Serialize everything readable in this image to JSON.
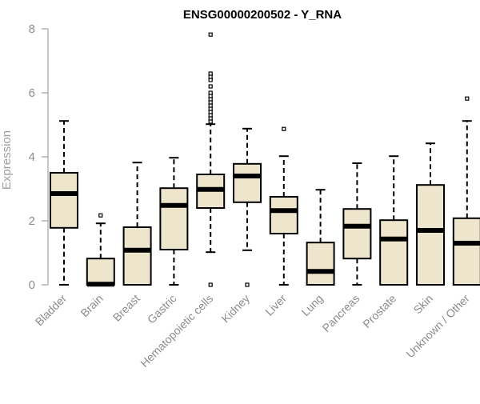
{
  "chart_data": {
    "type": "boxplot",
    "title": "ENSG00000200502 - Y_RNA",
    "ylabel": "Expression",
    "xlabel": "",
    "ylim": [
      0,
      8
    ],
    "yticks": [
      0,
      2,
      4,
      6,
      8
    ],
    "grid": false,
    "legend": "none",
    "box_fill": "#ede6cd",
    "line_color": "#000000",
    "categories": [
      "Bladder",
      "Brain",
      "Breast",
      "Gastric",
      "Hematopoietic cells",
      "Kidney",
      "Liver",
      "Lung",
      "Pancreas",
      "Prostate",
      "Skin",
      "Unknown / Other"
    ],
    "boxes": [
      {
        "category": "Bladder",
        "whisker_low": 0.0,
        "q1": 1.78,
        "median": 2.85,
        "q3": 3.5,
        "whisker_high": 5.12,
        "outliers": []
      },
      {
        "category": "Brain",
        "whisker_low": 0.0,
        "q1": 0.0,
        "median": 0.02,
        "q3": 0.82,
        "whisker_high": 1.92,
        "outliers": [
          2.17
        ]
      },
      {
        "category": "Breast",
        "whisker_low": 0.0,
        "q1": 0.0,
        "median": 1.08,
        "q3": 1.8,
        "whisker_high": 3.82,
        "outliers": []
      },
      {
        "category": "Gastric",
        "whisker_low": 0.0,
        "q1": 1.1,
        "median": 2.48,
        "q3": 3.02,
        "whisker_high": 3.97,
        "outliers": []
      },
      {
        "category": "Hematopoietic cells",
        "whisker_low": 1.02,
        "q1": 2.4,
        "median": 2.98,
        "q3": 3.45,
        "whisker_high": 5.02,
        "outliers": [
          0.0,
          5.1,
          5.2,
          5.3,
          5.4,
          5.5,
          5.6,
          5.7,
          5.8,
          5.9,
          6.0,
          6.2,
          6.4,
          6.5,
          6.6,
          7.82
        ]
      },
      {
        "category": "Kidney",
        "whisker_low": 1.08,
        "q1": 2.58,
        "median": 3.4,
        "q3": 3.78,
        "whisker_high": 4.88,
        "outliers": [
          0.0
        ]
      },
      {
        "category": "Liver",
        "whisker_low": 0.0,
        "q1": 1.6,
        "median": 2.32,
        "q3": 2.75,
        "whisker_high": 4.02,
        "outliers": [
          4.87
        ]
      },
      {
        "category": "Lung",
        "whisker_low": 0.0,
        "q1": 0.0,
        "median": 0.42,
        "q3": 1.32,
        "whisker_high": 2.97,
        "outliers": []
      },
      {
        "category": "Pancreas",
        "whisker_low": 0.0,
        "q1": 0.82,
        "median": 1.83,
        "q3": 2.37,
        "whisker_high": 3.8,
        "outliers": []
      },
      {
        "category": "Prostate",
        "whisker_low": 0.0,
        "q1": 0.0,
        "median": 1.43,
        "q3": 2.02,
        "whisker_high": 4.02,
        "outliers": []
      },
      {
        "category": "Skin",
        "whisker_low": 0.0,
        "q1": 0.0,
        "median": 1.7,
        "q3": 3.12,
        "whisker_high": 4.42,
        "outliers": []
      },
      {
        "category": "Unknown / Other",
        "whisker_low": 0.0,
        "q1": 0.0,
        "median": 1.3,
        "q3": 2.08,
        "whisker_high": 5.12,
        "outliers": [
          5.82
        ]
      }
    ]
  }
}
